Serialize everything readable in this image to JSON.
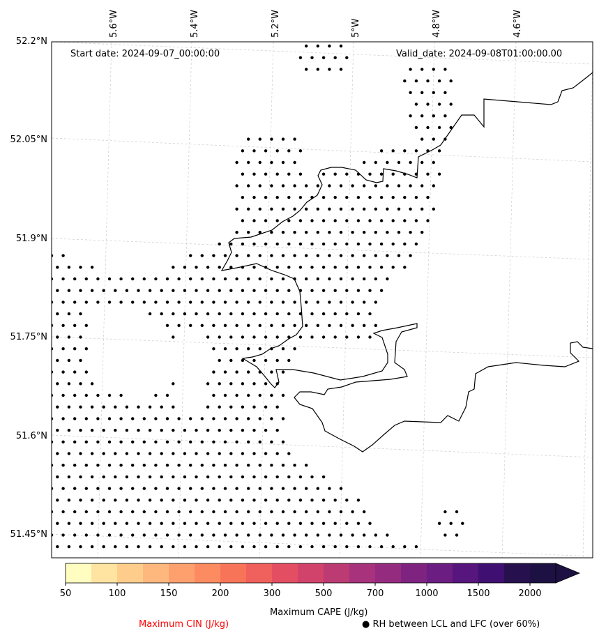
{
  "map": {
    "start_date": "Start date: 2024-09-07_00:00:00",
    "valid_date": "Valid_date: 2024-09-08T01:00:00.00",
    "lat_labels": [
      "52.2°N",
      "52.05°N",
      "51.9°N",
      "51.75°N",
      "51.6°N",
      "51.45°N"
    ],
    "lon_labels": [
      "5.6°W",
      "5.4°W",
      "5.2°W",
      "5°W",
      "4.8°W",
      "4.6°W"
    ],
    "hatch_meaning": "RH between LCL and LFC (over 60%)"
  },
  "colorbar": {
    "label": "Maximum CAPE (J/kg)",
    "tick_labels": [
      "50",
      "100",
      "150",
      "200",
      "300",
      "500",
      "700",
      "1000",
      "1500",
      "2000"
    ],
    "colors": [
      "#fffdc0",
      "#fee4a0",
      "#fecd8c",
      "#feb87d",
      "#fea06e",
      "#fd8b61",
      "#f87458",
      "#f0605c",
      "#e34e63",
      "#d1436b",
      "#bb3b72",
      "#a8327c",
      "#952b7f",
      "#7f2381",
      "#6b1d81",
      "#57157e",
      "#3f0f72",
      "#27104e",
      "#1d1143"
    ],
    "extend": "max"
  },
  "legend": {
    "cin_label": "Maximum CIN (J/kg)",
    "cin_color": "#ff0000",
    "rh_marker": "●",
    "rh_label": "RH between LCL and LFC (over 60%)"
  }
}
